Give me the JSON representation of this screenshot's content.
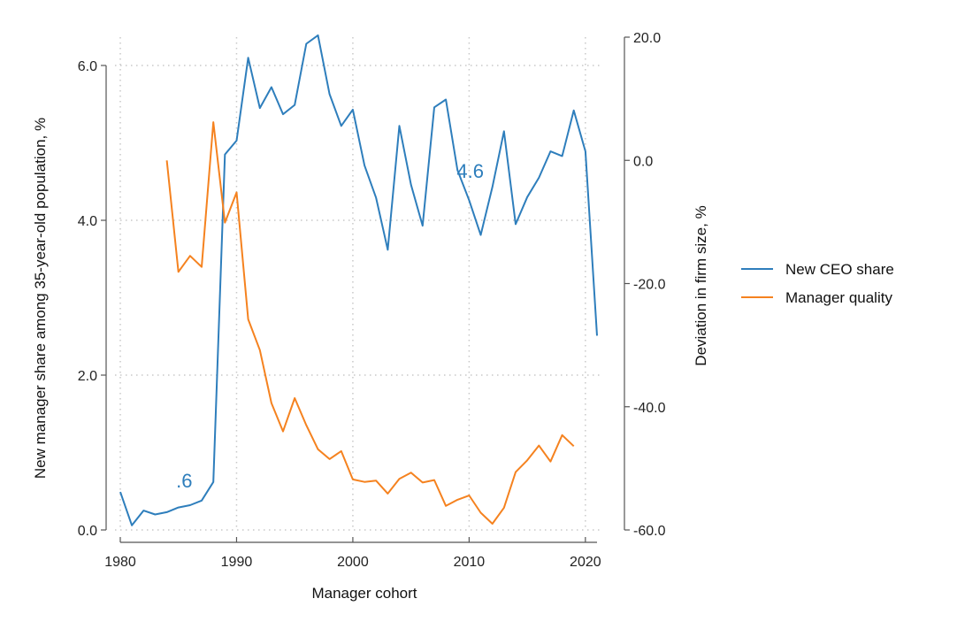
{
  "chart_data": {
    "type": "line",
    "xlabel": "Manager cohort",
    "ylabel_left": "New manager share among 35-year-old population, %",
    "ylabel_right": "Deviation in firm size, %",
    "xlim": [
      1980,
      2021
    ],
    "ylim_left": [
      0,
      6.5
    ],
    "ylim_right": [
      -60,
      20
    ],
    "x_ticks": [
      "1980",
      "1990",
      "2000",
      "2010",
      "2020"
    ],
    "y_left_ticks": [
      "0.0",
      "2.0",
      "4.0",
      "6.0"
    ],
    "y_right_ticks": [
      "-60.0",
      "-40.0",
      "-20.0",
      "0.0",
      "20.0"
    ],
    "grid": true,
    "legend_position": "right",
    "series": [
      {
        "name": "New CEO share",
        "axis": "left",
        "color": "#2e7ebc",
        "x": [
          1980,
          1981,
          1982,
          1983,
          1984,
          1985,
          1986,
          1987,
          1988,
          1989,
          1990,
          1991,
          1992,
          1993,
          1994,
          1995,
          1996,
          1997,
          1998,
          1999,
          2000,
          2001,
          2002,
          2003,
          2004,
          2005,
          2006,
          2007,
          2008,
          2009,
          2010,
          2011,
          2012,
          2013,
          2014,
          2015,
          2016,
          2017,
          2018,
          2019,
          2020,
          2021
        ],
        "values": [
          0.49,
          0.06,
          0.25,
          0.2,
          0.23,
          0.29,
          0.32,
          0.38,
          0.62,
          4.85,
          5.03,
          6.1,
          5.45,
          5.72,
          5.37,
          5.49,
          6.28,
          6.39,
          5.63,
          5.22,
          5.43,
          4.71,
          4.29,
          3.62,
          5.22,
          4.46,
          3.93,
          5.46,
          5.56,
          4.65,
          4.26,
          3.81,
          4.43,
          5.15,
          3.95,
          4.3,
          4.55,
          4.89,
          4.83,
          5.42,
          4.89,
          2.51
        ]
      },
      {
        "name": "Manager quality",
        "axis": "right",
        "color": "#f5821f",
        "x": [
          1984,
          1985,
          1986,
          1987,
          1988,
          1989,
          1990,
          1991,
          1992,
          1993,
          1994,
          1995,
          1996,
          1997,
          1998,
          1999,
          2000,
          2001,
          2002,
          2003,
          2004,
          2005,
          2006,
          2007,
          2008,
          2009,
          2010,
          2011,
          2012,
          2013,
          2014,
          2015,
          2016,
          2017,
          2018,
          2019
        ],
        "values": [
          0.0,
          -18.1,
          -15.5,
          -17.3,
          6.2,
          -10.1,
          -5.2,
          -25.8,
          -30.8,
          -39.4,
          -44.0,
          -38.6,
          -43.0,
          -46.9,
          -48.5,
          -47.2,
          -51.8,
          -52.2,
          -52.0,
          -54.1,
          -51.7,
          -50.7,
          -52.3,
          -51.9,
          -56.1,
          -55.1,
          -54.4,
          -57.2,
          -59.0,
          -56.4,
          -50.6,
          -48.7,
          -46.3,
          -48.9,
          -44.6,
          -46.4
        ]
      }
    ],
    "annotations": [
      {
        "text": ".6",
        "x": 1985.5,
        "y": 0.55,
        "axis": "left",
        "color": "#2e7ebc"
      },
      {
        "text": "4.6",
        "x": 2010.1,
        "y": 4.55,
        "axis": "left",
        "color": "#2e7ebc"
      }
    ]
  }
}
